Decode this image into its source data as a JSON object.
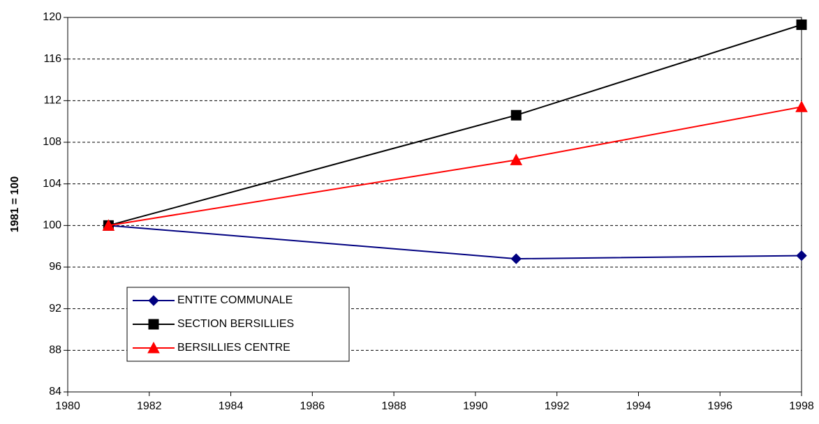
{
  "chart_data": {
    "type": "line",
    "y_label": "1981 = 100",
    "x": [
      1981,
      1991,
      1998
    ],
    "series": [
      {
        "name": "ENTITE COMMUNALE",
        "color": "#000080",
        "marker": "diamond",
        "values": [
          100,
          96.8,
          97.1
        ]
      },
      {
        "name": "SECTION BERSILLIES",
        "color": "#000000",
        "marker": "square",
        "values": [
          100,
          110.6,
          119.3
        ]
      },
      {
        "name": "BERSILLIES CENTRE",
        "color": "#ff0000",
        "marker": "triangle",
        "values": [
          100,
          106.3,
          111.4
        ]
      }
    ],
    "xlim": [
      1980,
      1998
    ],
    "xticks": [
      1980,
      1982,
      1984,
      1986,
      1988,
      1990,
      1992,
      1994,
      1996,
      1998
    ],
    "ylim": [
      84,
      120
    ],
    "yticks": [
      84,
      88,
      92,
      96,
      100,
      104,
      108,
      112,
      116,
      120
    ],
    "grid": true,
    "legend": "lower left"
  }
}
